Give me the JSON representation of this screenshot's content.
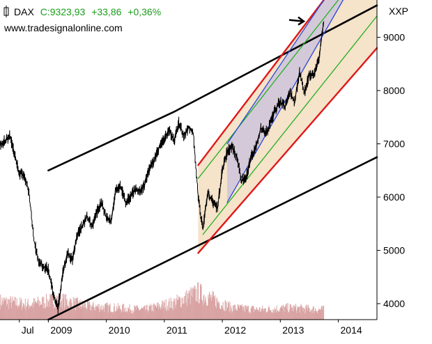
{
  "header": {
    "symbol": "DAX",
    "close_label": "C:9323,93",
    "change": "+33,86",
    "change_pct": "+0,36%",
    "website": "www.tradesignalonline.com"
  },
  "exchange_label": "XXP",
  "colors": {
    "price": "#000000",
    "volume": "#d9a3a3",
    "green_text": "#1a9c1a",
    "main_trend": "#000000",
    "red_channel": "#e01818",
    "green_channel": "#22b022",
    "blue_channel": "#2a48d8",
    "channel_fill": "#f2d9b8",
    "inner_fill": "#c2bce0"
  },
  "chart_data": {
    "type": "line",
    "title": "DAX",
    "x_tick_labels": [
      "Jul",
      "2009",
      "2010",
      "2011",
      "2012",
      "2013",
      "2014"
    ],
    "x_tick_dates": [
      "2008-07",
      "2009-01",
      "2010-01",
      "2011-01",
      "2012-01",
      "2013-01",
      "2014-01"
    ],
    "y_tick_labels": [
      "4000",
      "5000",
      "6000",
      "7000",
      "8000",
      "9000"
    ],
    "y_ticks": [
      4000,
      5000,
      6000,
      7000,
      8000,
      9000
    ],
    "xlim": [
      "2008-03",
      "2014-09"
    ],
    "ylim": [
      3700,
      9700
    ],
    "grid": false,
    "series": [
      {
        "kind": "price",
        "x": [
          "2008-03",
          "2008-04",
          "2008-05",
          "2008-06",
          "2008-07",
          "2008-08",
          "2008-09",
          "2008-10",
          "2008-11",
          "2008-12",
          "2009-01",
          "2009-02",
          "2009-03",
          "2009-04",
          "2009-05",
          "2009-06",
          "2009-07",
          "2009-08",
          "2009-09",
          "2009-10",
          "2009-11",
          "2009-12",
          "2010-01",
          "2010-02",
          "2010-03",
          "2010-04",
          "2010-05",
          "2010-06",
          "2010-07",
          "2010-08",
          "2010-09",
          "2010-10",
          "2010-11",
          "2010-12",
          "2011-01",
          "2011-02",
          "2011-03",
          "2011-04",
          "2011-05",
          "2011-06",
          "2011-07",
          "2011-08",
          "2011-09",
          "2011-10",
          "2011-11",
          "2011-12",
          "2012-01",
          "2012-02",
          "2012-03",
          "2012-04",
          "2012-05",
          "2012-06",
          "2012-07",
          "2012-08",
          "2012-09",
          "2012-10",
          "2012-11",
          "2012-12",
          "2013-01",
          "2013-02",
          "2013-03",
          "2013-04",
          "2013-05",
          "2013-06",
          "2013-07",
          "2013-08",
          "2013-09",
          "2013-10"
        ],
        "y": [
          7000,
          7050,
          7150,
          6800,
          6450,
          6400,
          6100,
          5200,
          4800,
          4700,
          4650,
          4200,
          3900,
          4600,
          4950,
          4800,
          5300,
          5450,
          5650,
          5450,
          5700,
          5900,
          5600,
          5550,
          6150,
          6200,
          5900,
          6000,
          6150,
          6100,
          6250,
          6550,
          6700,
          6950,
          7100,
          7250,
          7050,
          7400,
          7150,
          7300,
          7200,
          6000,
          5400,
          6100,
          5900,
          5800,
          6500,
          6850,
          6950,
          6750,
          6300,
          6400,
          6750,
          6950,
          7300,
          7200,
          7400,
          7650,
          7800,
          7700,
          7950,
          7800,
          8350,
          7950,
          8300,
          8300,
          8600,
          9300
        ]
      },
      {
        "kind": "volume",
        "x": [
          "2008-03",
          "2008-09",
          "2009-03",
          "2009-09",
          "2010-03",
          "2010-09",
          "2011-03",
          "2011-08",
          "2012-03",
          "2012-09",
          "2013-03",
          "2013-09"
        ],
        "y": [
          0.55,
          0.45,
          0.6,
          0.4,
          0.35,
          0.3,
          0.5,
          0.8,
          0.35,
          0.3,
          0.35,
          0.3
        ]
      }
    ],
    "trendlines": [
      {
        "name": "",
        "color": "black",
        "points": [
          [
            "2009-01",
            6500
          ],
          [
            "2011-03",
            7600
          ],
          [
            "2014-09",
            9600
          ]
        ]
      },
      {
        "name": "",
        "color": "black",
        "points": [
          [
            "2009-01",
            3700
          ],
          [
            "2014-09",
            6750
          ]
        ]
      },
      {
        "name": "",
        "color": "red",
        "points": [
          [
            "2011-08",
            6600
          ],
          [
            "2013-10",
            9700
          ]
        ]
      },
      {
        "name": "",
        "color": "red",
        "points": [
          [
            "2011-08",
            4950
          ],
          [
            "2014-09",
            8800
          ]
        ]
      },
      {
        "name": "",
        "color": "green",
        "points": [
          [
            "2011-08",
            6350
          ],
          [
            "2014-01",
            9700
          ]
        ]
      },
      {
        "name": "",
        "color": "green",
        "points": [
          [
            "2011-09",
            5300
          ],
          [
            "2014-09",
            9400
          ]
        ]
      },
      {
        "name": "",
        "color": "blue",
        "points": [
          [
            "2012-02",
            7000
          ],
          [
            "2013-10",
            9700
          ]
        ]
      },
      {
        "name": "",
        "color": "blue",
        "points": [
          [
            "2012-02",
            5900
          ],
          [
            "2014-02",
            9700
          ]
        ]
      }
    ],
    "annotations": [
      {
        "type": "arrow",
        "direction": "right",
        "x": "2013-06",
        "y": 9300
      }
    ]
  }
}
